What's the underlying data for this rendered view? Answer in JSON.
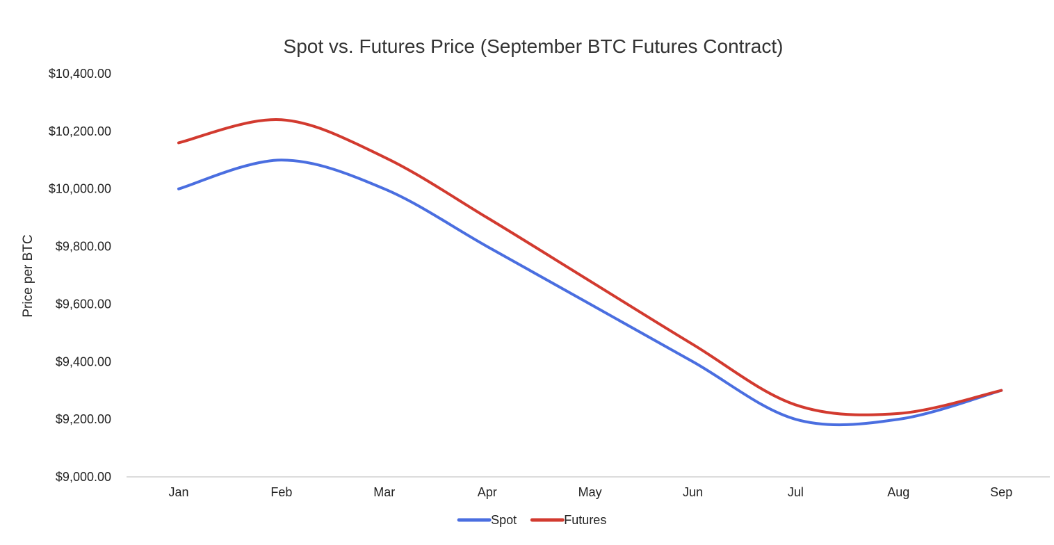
{
  "chart_data": {
    "type": "line",
    "title": "Spot vs. Futures Price (September BTC Futures Contract)",
    "xlabel": "",
    "ylabel": "Price per BTC",
    "categories": [
      "Jan",
      "Feb",
      "Mar",
      "Apr",
      "May",
      "Jun",
      "Jul",
      "Aug",
      "Sep"
    ],
    "ylim": [
      9000,
      10400
    ],
    "yticks": [
      9000,
      9200,
      9400,
      9600,
      9800,
      10000,
      10200,
      10400
    ],
    "ytick_labels": [
      "$9,000.00",
      "$9,200.00",
      "$9,400.00",
      "$9,600.00",
      "$9,800.00",
      "$10,000.00",
      "$10,200.00",
      "$10,400.00"
    ],
    "smooth": true,
    "grid": false,
    "legend_position": "bottom",
    "series": [
      {
        "name": "Spot",
        "color": "#4a6ee0",
        "values": [
          10000,
          10100,
          10000,
          9800,
          9600,
          9400,
          9200,
          9200,
          9300
        ]
      },
      {
        "name": "Futures",
        "color": "#d23a2f",
        "values": [
          10160,
          10240,
          10110,
          9900,
          9680,
          9460,
          9250,
          9220,
          9300
        ]
      }
    ]
  }
}
